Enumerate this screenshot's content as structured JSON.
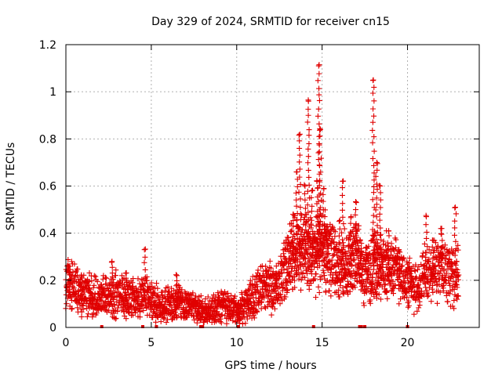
{
  "chart_data": {
    "type": "scatter",
    "title": "Day 329 of 2024, SRMTID for receiver cn15",
    "xlabel": "GPS time / hours",
    "ylabel": "SRMTID / TECUs",
    "xlim": [
      0,
      24.2
    ],
    "ylim": [
      0,
      1.2
    ],
    "xticks": [
      0,
      5,
      10,
      15,
      20
    ],
    "yticks": [
      0,
      0.2,
      0.4,
      0.6,
      0.8,
      1,
      1.2
    ],
    "xtick_labels": [
      "0",
      "5",
      "10",
      "15",
      "20"
    ],
    "ytick_labels": [
      "0",
      "0.2",
      "0.4",
      "0.6",
      "0.8",
      "1",
      "1.2"
    ],
    "grid": true,
    "marker": "+",
    "series_color": "#e00000",
    "profile": [
      [
        0.0,
        0.19
      ],
      [
        0.5,
        0.17
      ],
      [
        1.0,
        0.15
      ],
      [
        1.5,
        0.14
      ],
      [
        2.0,
        0.13
      ],
      [
        2.5,
        0.13
      ],
      [
        3.0,
        0.14
      ],
      [
        3.5,
        0.13
      ],
      [
        4.0,
        0.12
      ],
      [
        4.5,
        0.13
      ],
      [
        5.0,
        0.12
      ],
      [
        5.5,
        0.1
      ],
      [
        6.0,
        0.1
      ],
      [
        6.5,
        0.1
      ],
      [
        7.0,
        0.09
      ],
      [
        7.5,
        0.08
      ],
      [
        8.0,
        0.06
      ],
      [
        8.5,
        0.07
      ],
      [
        9.0,
        0.09
      ],
      [
        9.5,
        0.09
      ],
      [
        10.0,
        0.07
      ],
      [
        10.5,
        0.09
      ],
      [
        11.0,
        0.13
      ],
      [
        11.5,
        0.17
      ],
      [
        12.0,
        0.17
      ],
      [
        12.5,
        0.18
      ],
      [
        13.0,
        0.28
      ],
      [
        13.5,
        0.34
      ],
      [
        14.0,
        0.32
      ],
      [
        14.5,
        0.3
      ],
      [
        15.0,
        0.33
      ],
      [
        15.5,
        0.31
      ],
      [
        16.0,
        0.24
      ],
      [
        16.5,
        0.27
      ],
      [
        17.0,
        0.3
      ],
      [
        17.5,
        0.21
      ],
      [
        18.0,
        0.27
      ],
      [
        18.5,
        0.25
      ],
      [
        19.0,
        0.26
      ],
      [
        19.5,
        0.24
      ],
      [
        20.0,
        0.19
      ],
      [
        20.5,
        0.16
      ],
      [
        21.0,
        0.22
      ],
      [
        21.5,
        0.22
      ],
      [
        22.0,
        0.26
      ],
      [
        22.5,
        0.22
      ],
      [
        23.0,
        0.22
      ]
    ],
    "spikes": [
      [
        0.2,
        0.26
      ],
      [
        0.9,
        0.22
      ],
      [
        2.7,
        0.28
      ],
      [
        3.5,
        0.23
      ],
      [
        4.6,
        0.33
      ],
      [
        6.5,
        0.22
      ],
      [
        12.3,
        0.23
      ],
      [
        13.3,
        0.48
      ],
      [
        13.5,
        0.66
      ],
      [
        13.7,
        0.82
      ],
      [
        14.0,
        0.6
      ],
      [
        14.2,
        0.96
      ],
      [
        14.4,
        0.58
      ],
      [
        14.7,
        0.62
      ],
      [
        14.8,
        1.11
      ],
      [
        14.9,
        0.84
      ],
      [
        15.1,
        0.59
      ],
      [
        15.3,
        0.43
      ],
      [
        16.0,
        0.45
      ],
      [
        16.2,
        0.62
      ],
      [
        16.7,
        0.47
      ],
      [
        17.0,
        0.53
      ],
      [
        17.3,
        0.32
      ],
      [
        17.6,
        0.34
      ],
      [
        18.0,
        1.05
      ],
      [
        18.2,
        0.7
      ],
      [
        18.4,
        0.6
      ],
      [
        18.9,
        0.41
      ],
      [
        19.5,
        0.33
      ],
      [
        20.2,
        0.24
      ],
      [
        21.1,
        0.47
      ],
      [
        21.5,
        0.37
      ],
      [
        22.0,
        0.42
      ],
      [
        22.8,
        0.51
      ]
    ],
    "zero_points": [
      2.1,
      4.5,
      5.3,
      7.9,
      8.0,
      10.1,
      14.5,
      17.2,
      17.3,
      17.5,
      20.0
    ]
  }
}
